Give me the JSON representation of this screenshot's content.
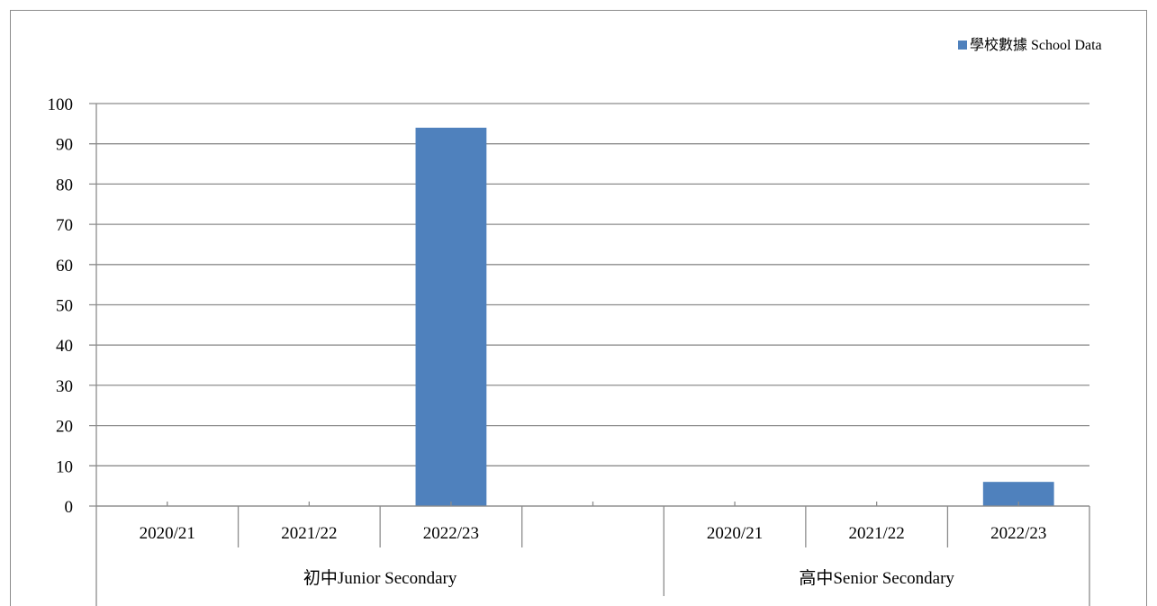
{
  "chart_data": {
    "type": "bar",
    "title": "",
    "xlabel": "",
    "ylabel": "",
    "ylim": [
      0,
      100
    ],
    "yticks": [
      0,
      10,
      20,
      30,
      40,
      50,
      60,
      70,
      80,
      90,
      100
    ],
    "groups": [
      {
        "label": "初中Junior Secondary",
        "categories": [
          "2020/21",
          "2021/22",
          "2022/23"
        ],
        "values": [
          0,
          0,
          94
        ]
      },
      {
        "label": "高中Senior Secondary",
        "categories": [
          "2020/21",
          "2021/22",
          "2022/23"
        ],
        "values": [
          0,
          0,
          6
        ]
      }
    ],
    "series": [
      {
        "name": "學校數據 School Data",
        "color": "#4f81bd"
      }
    ],
    "legend": {
      "position": "top-right"
    },
    "grid": true,
    "gridline_color": "#8c8c8c"
  }
}
